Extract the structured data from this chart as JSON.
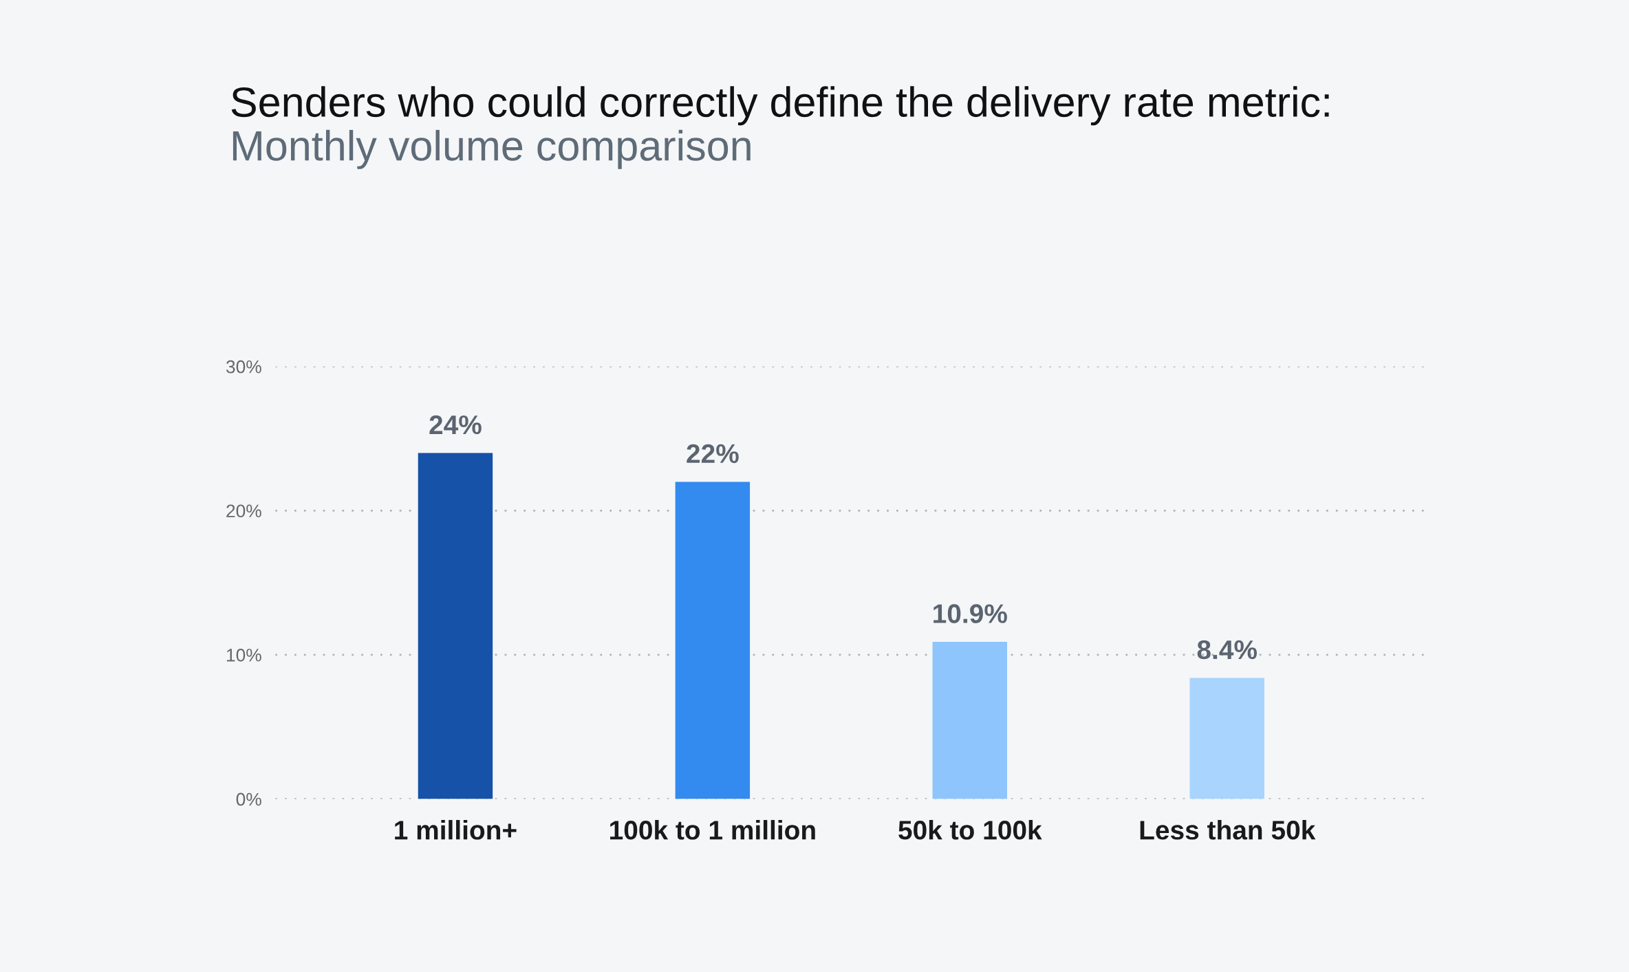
{
  "chart_data": {
    "type": "bar",
    "title": "Senders who could correctly define the delivery rate metric:",
    "subtitle": "Monthly volume comparison",
    "categories": [
      "1 million+",
      "100k to 1 million",
      "50k to 100k",
      "Less than 50k"
    ],
    "values": [
      24,
      22,
      10.9,
      8.4
    ],
    "colors": [
      "#1652a8",
      "#338aef",
      "#8ec5fc",
      "#a8d4fd"
    ],
    "value_labels": [
      "24%",
      "22%",
      "10.9%",
      "8.4%"
    ],
    "ylim": [
      0,
      30
    ],
    "yticks": [
      {
        "value": 0,
        "label": "0%"
      },
      {
        "value": 10,
        "label": "10%"
      },
      {
        "value": 20,
        "label": "20%"
      },
      {
        "value": 30,
        "label": "30%"
      }
    ],
    "grid": "y"
  }
}
